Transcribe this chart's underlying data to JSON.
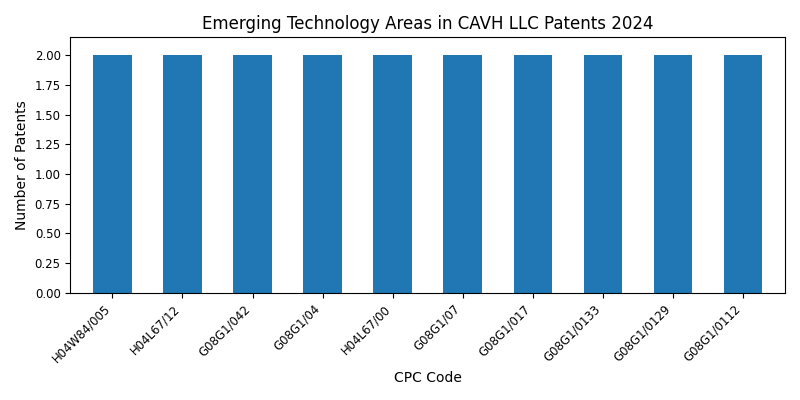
{
  "title": "Emerging Technology Areas in CAVH LLC Patents 2024",
  "xlabel": "CPC Code",
  "ylabel": "Number of Patents",
  "categories": [
    "H04W84/005",
    "H04L67/12",
    "G08G1/042",
    "G08G1/04",
    "H04L67/00",
    "G08G1/07",
    "G08G1/017",
    "G08G1/0133",
    "G08G1/0129",
    "G08G1/0112"
  ],
  "values": [
    2,
    2,
    2,
    2,
    2,
    2,
    2,
    2,
    2,
    2
  ],
  "bar_color": "#2077b4",
  "ylim": [
    0,
    2.15
  ],
  "yticks": [
    0.0,
    0.25,
    0.5,
    0.75,
    1.0,
    1.25,
    1.5,
    1.75,
    2.0
  ],
  "figsize": [
    8.0,
    4.0
  ],
  "dpi": 100,
  "title_fontsize": 12,
  "label_fontsize": 10,
  "tick_fontsize": 8.5,
  "rotation": 45,
  "bar_width": 0.55
}
